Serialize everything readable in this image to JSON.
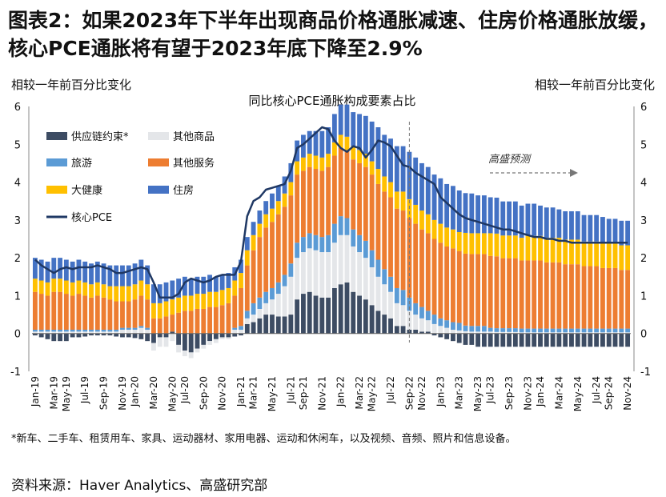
{
  "title": "图表2：如果2023年下半年出现商品价格通胀减速、住房价格通胀放缓，核心PCE通胀将有望于2023年底下降至2.9%",
  "left_axis_label": "相较一年前百分比变化",
  "right_axis_label": "相较一年前百分比变化",
  "footnote": "*新车、二手车、租赁用车、家具、运动器材、家用电器、运动和休闲车，以及视频、音频、照片和信息设备。",
  "source": "资料来源：Haver Analytics、高盛研究部",
  "colors": {
    "supply": "#3d4c63",
    "goods": "#e4e6e9",
    "travel": "#5b9bd5",
    "services": "#ed7d31",
    "health": "#ffc000",
    "housing": "#4472c4",
    "core": "#1f3864"
  },
  "chart_data": {
    "type": "bar",
    "stacked": true,
    "title": "同比核心PCE通胀构成要素占比",
    "ylim": [
      -1,
      6
    ],
    "yticks": [
      -1,
      0,
      1,
      2,
      3,
      4,
      5,
      6
    ],
    "x_tick_labels": [
      "Jan-19",
      "Mar-19",
      "May-19",
      "Jul-19",
      "Sep-19",
      "Nov-19",
      "Jan-20",
      "Mar-20",
      "May-20",
      "Jul-20",
      "Sep-20",
      "Nov-20",
      "Jan-21",
      "Mar-21",
      "May-21",
      "Jul-21",
      "Sep-21",
      "Nov-21",
      "Jan-22",
      "Mar-22",
      "May-22",
      "Jul-22",
      "Sep-22",
      "Nov-22",
      "Jan-23",
      "Mar-23",
      "May-23",
      "Jul-23",
      "Sep-23",
      "Nov-23",
      "Jan-24",
      "Mar-24",
      "May-24",
      "Jul-24",
      "Sep-24",
      "Nov-24"
    ],
    "forecast_start": "Sep-22",
    "annotation": "高盛预测",
    "legend_position": "top-left",
    "series": [
      {
        "key": "supply",
        "name": "供应链约束*",
        "values": [
          -0.05,
          -0.1,
          -0.15,
          -0.2,
          -0.2,
          -0.2,
          -0.1,
          -0.1,
          -0.08,
          -0.05,
          -0.05,
          -0.05,
          -0.05,
          -0.08,
          -0.1,
          -0.1,
          -0.12,
          -0.15,
          -0.2,
          -0.25,
          -0.1,
          -0.1,
          0.05,
          -0.3,
          -0.45,
          -0.5,
          -0.4,
          -0.3,
          -0.2,
          -0.15,
          -0.1,
          -0.1,
          -0.08,
          -0.05,
          0.25,
          0.3,
          0.4,
          0.5,
          0.5,
          0.45,
          0.45,
          0.5,
          0.9,
          1.05,
          1.1,
          1.0,
          0.95,
          0.95,
          1.2,
          1.3,
          1.35,
          1.1,
          1.0,
          0.9,
          0.75,
          0.6,
          0.5,
          0.4,
          0.2,
          0.2,
          0.1,
          0.1,
          0.05,
          0.05,
          -0.05,
          -0.1,
          -0.15,
          -0.2,
          -0.25,
          -0.3,
          -0.3,
          -0.35,
          -0.35,
          -0.35,
          -0.35,
          -0.35,
          -0.35,
          -0.35,
          -0.35,
          -0.35,
          -0.35,
          -0.35,
          -0.35,
          -0.35,
          -0.35,
          -0.35,
          -0.35,
          -0.35,
          -0.35,
          -0.35,
          -0.35,
          -0.35,
          -0.35,
          -0.35,
          -0.35,
          -0.35
        ]
      },
      {
        "key": "goods",
        "name": "其他商品",
        "values": [
          0.05,
          0.05,
          0.05,
          0.05,
          0.05,
          0.05,
          0.05,
          0.05,
          0.05,
          0.05,
          0.05,
          0.05,
          0.05,
          0.05,
          0.1,
          0.1,
          0.1,
          0.15,
          0.1,
          -0.2,
          -0.25,
          -0.25,
          -0.2,
          -0.2,
          -0.15,
          -0.15,
          -0.1,
          -0.1,
          -0.1,
          -0.1,
          -0.05,
          -0.05,
          0.1,
          0.1,
          0.15,
          0.2,
          0.25,
          0.3,
          0.4,
          0.6,
          0.8,
          1.0,
          1.1,
          1.1,
          1.15,
          1.2,
          1.2,
          1.2,
          1.2,
          1.3,
          1.25,
          1.2,
          1.15,
          1.1,
          1.0,
          0.9,
          0.8,
          0.7,
          0.6,
          0.55,
          0.5,
          0.4,
          0.35,
          0.3,
          0.25,
          0.2,
          0.15,
          0.1,
          0.08,
          0.06,
          0.05,
          0.05,
          0.05,
          0.05,
          0.04,
          0.04,
          0.04,
          0.04,
          0.03,
          0.03,
          0.03,
          0.03,
          0.03,
          0.03,
          0.03,
          0.03,
          0.03,
          0.03,
          0.03,
          0.03,
          0.03,
          0.03,
          0.03,
          0.03,
          0.03,
          0.03
        ]
      },
      {
        "key": "travel",
        "name": "旅游",
        "values": [
          0.05,
          0.05,
          0.05,
          0.05,
          0.05,
          0.05,
          0.05,
          0.05,
          0.05,
          0.05,
          0.05,
          0.05,
          0.05,
          0.05,
          0.05,
          0.05,
          0.05,
          0.05,
          0.05,
          0.0,
          0.0,
          0.0,
          0.0,
          0.0,
          0.0,
          0.0,
          0.0,
          0.0,
          0.0,
          0.0,
          0.0,
          0.0,
          0.05,
          0.1,
          0.2,
          0.3,
          0.3,
          0.3,
          0.3,
          0.3,
          0.3,
          0.35,
          0.4,
          0.4,
          0.4,
          0.4,
          0.4,
          0.45,
          0.5,
          0.5,
          0.45,
          0.45,
          0.45,
          0.45,
          0.45,
          0.45,
          0.4,
          0.4,
          0.4,
          0.4,
          0.35,
          0.3,
          0.3,
          0.25,
          0.25,
          0.2,
          0.2,
          0.2,
          0.2,
          0.15,
          0.15,
          0.15,
          0.15,
          0.1,
          0.1,
          0.1,
          0.1,
          0.1,
          0.1,
          0.1,
          0.1,
          0.1,
          0.1,
          0.1,
          0.1,
          0.1,
          0.1,
          0.1,
          0.1,
          0.1,
          0.1,
          0.1,
          0.1,
          0.1,
          0.1,
          0.1
        ]
      },
      {
        "key": "services",
        "name": "其他服务",
        "values": [
          1.0,
          0.95,
          0.9,
          1.0,
          1.0,
          0.95,
          0.9,
          0.95,
          0.9,
          0.85,
          0.9,
          0.85,
          0.8,
          0.75,
          0.7,
          0.7,
          0.75,
          0.8,
          0.75,
          0.4,
          0.4,
          0.45,
          0.45,
          0.55,
          0.6,
          0.6,
          0.65,
          0.65,
          0.7,
          0.7,
          0.75,
          0.8,
          0.85,
          1.0,
          1.2,
          1.4,
          1.6,
          1.7,
          1.75,
          1.8,
          1.8,
          1.8,
          1.8,
          1.75,
          1.75,
          1.75,
          1.75,
          1.8,
          1.8,
          1.8,
          1.8,
          1.85,
          1.9,
          1.95,
          2.0,
          2.0,
          2.05,
          2.1,
          2.1,
          2.1,
          2.1,
          2.1,
          2.05,
          2.05,
          2.0,
          2.0,
          1.95,
          1.95,
          1.9,
          1.9,
          1.9,
          1.9,
          1.9,
          1.9,
          1.9,
          1.85,
          1.85,
          1.85,
          1.8,
          1.8,
          1.8,
          1.8,
          1.75,
          1.75,
          1.75,
          1.7,
          1.7,
          1.7,
          1.65,
          1.65,
          1.65,
          1.6,
          1.6,
          1.6,
          1.55,
          1.55
        ]
      },
      {
        "key": "health",
        "name": "大健康",
        "values": [
          0.35,
          0.35,
          0.35,
          0.35,
          0.35,
          0.35,
          0.35,
          0.35,
          0.35,
          0.35,
          0.35,
          0.35,
          0.35,
          0.4,
          0.4,
          0.4,
          0.4,
          0.4,
          0.4,
          0.4,
          0.4,
          0.4,
          0.4,
          0.4,
          0.4,
          0.4,
          0.4,
          0.4,
          0.4,
          0.4,
          0.4,
          0.4,
          0.4,
          0.4,
          0.4,
          0.4,
          0.35,
          0.35,
          0.35,
          0.35,
          0.35,
          0.35,
          0.35,
          0.35,
          0.35,
          0.35,
          0.35,
          0.35,
          0.35,
          0.35,
          0.35,
          0.35,
          0.35,
          0.35,
          0.35,
          0.4,
          0.4,
          0.4,
          0.45,
          0.5,
          0.5,
          0.5,
          0.5,
          0.5,
          0.5,
          0.5,
          0.5,
          0.5,
          0.5,
          0.55,
          0.55,
          0.55,
          0.55,
          0.6,
          0.6,
          0.6,
          0.6,
          0.6,
          0.6,
          0.65,
          0.65,
          0.65,
          0.65,
          0.65,
          0.65,
          0.65,
          0.65,
          0.65,
          0.65,
          0.65,
          0.65,
          0.65,
          0.65,
          0.65,
          0.65,
          0.65
        ]
      },
      {
        "key": "housing",
        "name": "住房",
        "values": [
          0.55,
          0.55,
          0.55,
          0.55,
          0.55,
          0.55,
          0.55,
          0.55,
          0.55,
          0.55,
          0.55,
          0.55,
          0.55,
          0.55,
          0.55,
          0.55,
          0.55,
          0.55,
          0.5,
          0.5,
          0.5,
          0.5,
          0.5,
          0.5,
          0.5,
          0.45,
          0.45,
          0.45,
          0.45,
          0.4,
          0.4,
          0.4,
          0.35,
          0.35,
          0.35,
          0.35,
          0.35,
          0.35,
          0.4,
          0.4,
          0.45,
          0.5,
          0.55,
          0.6,
          0.6,
          0.65,
          0.7,
          0.7,
          0.75,
          0.8,
          0.85,
          0.9,
          0.95,
          1.0,
          1.05,
          1.1,
          1.1,
          1.15,
          1.2,
          1.2,
          1.25,
          1.25,
          1.25,
          1.25,
          1.2,
          1.2,
          1.15,
          1.15,
          1.1,
          1.05,
          1.05,
          1.0,
          1.0,
          0.95,
          0.95,
          0.9,
          0.9,
          0.9,
          0.85,
          0.85,
          0.85,
          0.8,
          0.8,
          0.8,
          0.75,
          0.75,
          0.75,
          0.75,
          0.7,
          0.7,
          0.7,
          0.7,
          0.65,
          0.65,
          0.65,
          0.65
        ]
      },
      {
        "key": "core",
        "name": "核心PCE",
        "type": "line",
        "values": [
          1.95,
          1.8,
          1.7,
          1.6,
          1.7,
          1.75,
          1.7,
          1.75,
          1.75,
          1.75,
          1.8,
          1.75,
          1.7,
          1.6,
          1.6,
          1.65,
          1.7,
          1.75,
          1.7,
          1.35,
          0.95,
          0.95,
          0.95,
          1.05,
          1.35,
          1.45,
          1.4,
          1.35,
          1.4,
          1.5,
          1.55,
          1.55,
          1.55,
          1.9,
          3.1,
          3.5,
          3.6,
          3.8,
          3.85,
          3.9,
          3.95,
          4.3,
          4.9,
          5.0,
          5.15,
          5.3,
          5.45,
          5.4,
          5.1,
          4.9,
          4.8,
          4.95,
          4.9,
          4.65,
          4.85,
          5.1,
          5.05,
          4.95,
          4.7,
          4.45,
          4.4,
          4.25,
          4.15,
          4.05,
          3.95,
          3.6,
          3.45,
          3.3,
          3.15,
          3.05,
          3.0,
          2.95,
          2.9,
          2.85,
          2.8,
          2.75,
          2.75,
          2.7,
          2.65,
          2.6,
          2.55,
          2.55,
          2.5,
          2.5,
          2.45,
          2.45,
          2.4,
          2.4,
          2.4,
          2.4,
          2.4,
          2.4,
          2.4,
          2.4,
          2.4,
          2.4
        ]
      }
    ]
  }
}
